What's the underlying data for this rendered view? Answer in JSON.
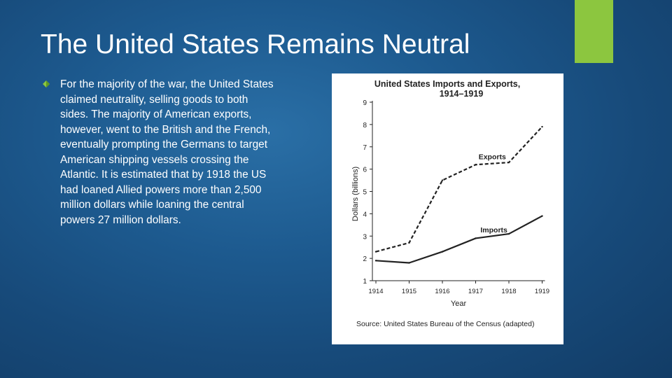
{
  "slide": {
    "title": "The United States Remains Neutral",
    "accent_color": "#8cc63f",
    "bullet_text": "For the majority of the war, the United States claimed neutrality, selling goods to both sides. The majority of American exports, however, went to the British and the French, eventually prompting the Germans to target American shipping vessels crossing the Atlantic. It is estimated that by 1918 the US had loaned Allied powers more than 2,500 million dollars while loaning the central powers 27 million dollars.",
    "bullet_icon": "diamond-arrow-icon"
  },
  "chart_data": {
    "type": "line",
    "title_line1": "United States Imports and Exports,",
    "title_line2": "1914–1919",
    "xlabel": "Year",
    "ylabel": "Dollars (billions)",
    "categories": [
      "1914",
      "1915",
      "1916",
      "1917",
      "1918",
      "1919"
    ],
    "yticks": [
      1,
      2,
      3,
      4,
      5,
      6,
      7,
      8,
      9
    ],
    "ylim": [
      1,
      9
    ],
    "series": [
      {
        "name": "Exports",
        "style": "dashed",
        "values": [
          2.3,
          2.7,
          5.5,
          6.2,
          6.3,
          7.9
        ]
      },
      {
        "name": "Imports",
        "style": "solid",
        "values": [
          1.9,
          1.8,
          2.3,
          2.9,
          3.1,
          3.9
        ]
      }
    ],
    "source": "Source: United States Bureau of the Census (adapted)"
  }
}
